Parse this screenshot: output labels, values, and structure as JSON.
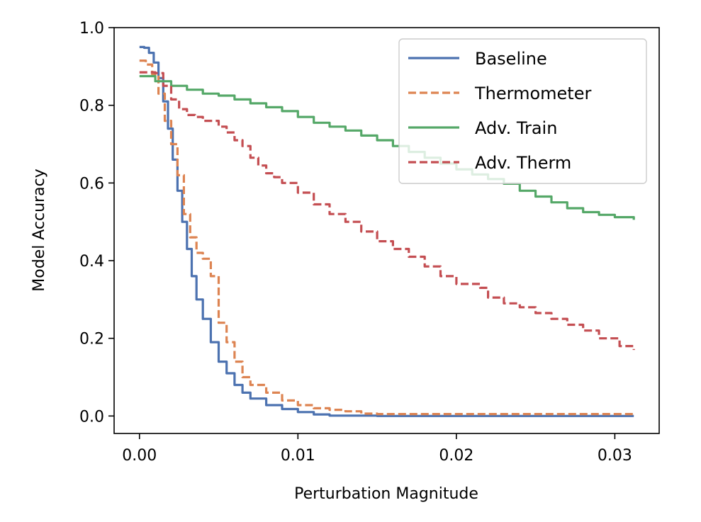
{
  "chart_data": {
    "type": "line",
    "xlabel": "Perturbation Magnitude",
    "ylabel": "Model Accuracy",
    "xlim": [
      -0.0016,
      0.0328
    ],
    "ylim": [
      -0.045,
      1.0
    ],
    "x_ticks": [
      0.0,
      0.01,
      0.02,
      0.03
    ],
    "x_tick_labels": [
      "0.00",
      "0.01",
      "0.02",
      "0.03"
    ],
    "y_ticks": [
      0.0,
      0.2,
      0.4,
      0.6,
      0.8,
      1.0
    ],
    "y_tick_labels": [
      "0.0",
      "0.2",
      "0.4",
      "0.6",
      "0.8",
      "1.0"
    ],
    "grid": false,
    "legend_position": "top-right",
    "series": [
      {
        "name": "Baseline",
        "color": "#4c72b0",
        "dash": "solid",
        "points": [
          [
            0.0,
            0.95
          ],
          [
            0.0003,
            0.948
          ],
          [
            0.0006,
            0.935
          ],
          [
            0.0009,
            0.91
          ],
          [
            0.0012,
            0.87
          ],
          [
            0.0015,
            0.81
          ],
          [
            0.0018,
            0.74
          ],
          [
            0.0021,
            0.66
          ],
          [
            0.0024,
            0.58
          ],
          [
            0.0027,
            0.5
          ],
          [
            0.003,
            0.43
          ],
          [
            0.0033,
            0.36
          ],
          [
            0.0036,
            0.3
          ],
          [
            0.004,
            0.25
          ],
          [
            0.0045,
            0.19
          ],
          [
            0.005,
            0.14
          ],
          [
            0.0055,
            0.11
          ],
          [
            0.006,
            0.08
          ],
          [
            0.0065,
            0.06
          ],
          [
            0.007,
            0.045
          ],
          [
            0.008,
            0.028
          ],
          [
            0.009,
            0.018
          ],
          [
            0.01,
            0.01
          ],
          [
            0.011,
            0.004
          ],
          [
            0.012,
            0.001
          ],
          [
            0.015,
            0.0
          ],
          [
            0.02,
            0.0
          ],
          [
            0.025,
            0.0
          ],
          [
            0.0312,
            0.0
          ]
        ]
      },
      {
        "name": "Thermometer",
        "color": "#dd8452",
        "dash": "dashed",
        "points": [
          [
            0.0,
            0.915
          ],
          [
            0.0004,
            0.905
          ],
          [
            0.0008,
            0.88
          ],
          [
            0.0012,
            0.83
          ],
          [
            0.0016,
            0.76
          ],
          [
            0.002,
            0.7
          ],
          [
            0.0024,
            0.62
          ],
          [
            0.0028,
            0.52
          ],
          [
            0.0032,
            0.46
          ],
          [
            0.0036,
            0.42
          ],
          [
            0.004,
            0.405
          ],
          [
            0.0045,
            0.36
          ],
          [
            0.005,
            0.24
          ],
          [
            0.0055,
            0.19
          ],
          [
            0.006,
            0.14
          ],
          [
            0.0065,
            0.1
          ],
          [
            0.007,
            0.08
          ],
          [
            0.008,
            0.06
          ],
          [
            0.009,
            0.04
          ],
          [
            0.01,
            0.028
          ],
          [
            0.011,
            0.02
          ],
          [
            0.012,
            0.016
          ],
          [
            0.013,
            0.012
          ],
          [
            0.014,
            0.006
          ],
          [
            0.015,
            0.005
          ],
          [
            0.02,
            0.005
          ],
          [
            0.025,
            0.005
          ],
          [
            0.0312,
            0.005
          ]
        ]
      },
      {
        "name": "Adv. Train",
        "color": "#55a868",
        "dash": "solid",
        "points": [
          [
            0.0,
            0.875
          ],
          [
            0.001,
            0.862
          ],
          [
            0.002,
            0.85
          ],
          [
            0.003,
            0.84
          ],
          [
            0.004,
            0.83
          ],
          [
            0.005,
            0.825
          ],
          [
            0.006,
            0.815
          ],
          [
            0.007,
            0.805
          ],
          [
            0.008,
            0.795
          ],
          [
            0.009,
            0.785
          ],
          [
            0.01,
            0.77
          ],
          [
            0.011,
            0.755
          ],
          [
            0.012,
            0.745
          ],
          [
            0.013,
            0.735
          ],
          [
            0.014,
            0.722
          ],
          [
            0.015,
            0.71
          ],
          [
            0.016,
            0.695
          ],
          [
            0.017,
            0.68
          ],
          [
            0.018,
            0.665
          ],
          [
            0.019,
            0.65
          ],
          [
            0.02,
            0.635
          ],
          [
            0.021,
            0.622
          ],
          [
            0.022,
            0.61
          ],
          [
            0.023,
            0.598
          ],
          [
            0.024,
            0.58
          ],
          [
            0.025,
            0.565
          ],
          [
            0.026,
            0.55
          ],
          [
            0.027,
            0.535
          ],
          [
            0.028,
            0.525
          ],
          [
            0.029,
            0.518
          ],
          [
            0.03,
            0.512
          ],
          [
            0.0312,
            0.505
          ]
        ]
      },
      {
        "name": "Adv. Therm",
        "color": "#c44e52",
        "dash": "dashed",
        "points": [
          [
            0.0,
            0.885
          ],
          [
            0.0005,
            0.885
          ],
          [
            0.001,
            0.883
          ],
          [
            0.0015,
            0.85
          ],
          [
            0.002,
            0.815
          ],
          [
            0.0025,
            0.79
          ],
          [
            0.003,
            0.775
          ],
          [
            0.0035,
            0.77
          ],
          [
            0.004,
            0.76
          ],
          [
            0.005,
            0.745
          ],
          [
            0.0055,
            0.73
          ],
          [
            0.006,
            0.71
          ],
          [
            0.0065,
            0.695
          ],
          [
            0.007,
            0.665
          ],
          [
            0.0075,
            0.645
          ],
          [
            0.008,
            0.625
          ],
          [
            0.0085,
            0.615
          ],
          [
            0.009,
            0.6
          ],
          [
            0.01,
            0.575
          ],
          [
            0.011,
            0.545
          ],
          [
            0.012,
            0.52
          ],
          [
            0.013,
            0.5
          ],
          [
            0.014,
            0.475
          ],
          [
            0.015,
            0.45
          ],
          [
            0.016,
            0.43
          ],
          [
            0.017,
            0.41
          ],
          [
            0.018,
            0.385
          ],
          [
            0.019,
            0.36
          ],
          [
            0.02,
            0.34
          ],
          [
            0.0215,
            0.33
          ],
          [
            0.022,
            0.305
          ],
          [
            0.023,
            0.29
          ],
          [
            0.024,
            0.28
          ],
          [
            0.025,
            0.265
          ],
          [
            0.026,
            0.25
          ],
          [
            0.027,
            0.235
          ],
          [
            0.028,
            0.22
          ],
          [
            0.029,
            0.2
          ],
          [
            0.0303,
            0.18
          ],
          [
            0.0312,
            0.17
          ]
        ]
      }
    ]
  }
}
